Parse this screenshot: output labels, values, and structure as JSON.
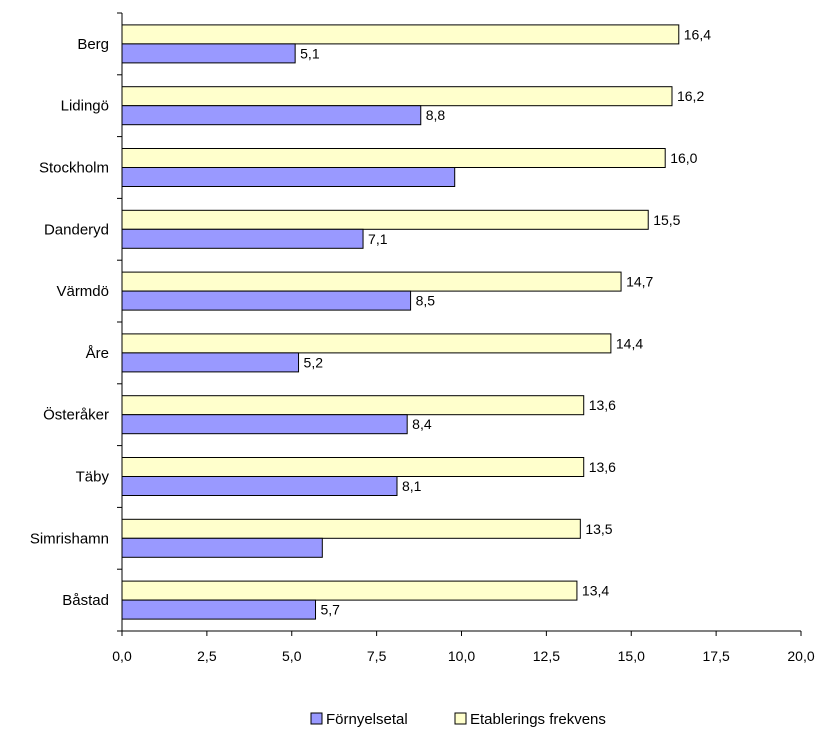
{
  "chart_data": {
    "type": "bar",
    "orientation": "horizontal",
    "categories": [
      "Berg",
      "Lidingö",
      "Stockholm",
      "Danderyd",
      "Värmdö",
      "Åre",
      "Österåker",
      "Täby",
      "Simrishamn",
      "Båstad"
    ],
    "series": [
      {
        "name": "Förnyelsetal",
        "color": "#9999ff",
        "values": [
          5.1,
          8.8,
          9.8,
          7.1,
          8.5,
          5.2,
          8.4,
          8.1,
          5.9,
          5.7
        ],
        "labels": [
          "5,1",
          "8,8",
          "",
          "7,1",
          "8,5",
          "5,2",
          "8,4",
          "8,1",
          "",
          "5,7"
        ]
      },
      {
        "name": "Etablerings frekvens",
        "color": "#ffffcc",
        "values": [
          16.4,
          16.2,
          16.0,
          15.5,
          14.7,
          14.4,
          13.6,
          13.6,
          13.5,
          13.4
        ],
        "labels": [
          "16,4",
          "16,2",
          "16,0",
          "15,5",
          "14,7",
          "14,4",
          "13,6",
          "13,6",
          "13,5",
          "13,4"
        ]
      }
    ],
    "xlim": [
      0,
      20
    ],
    "xticks": [
      "0,0",
      "2,5",
      "5,0",
      "7,5",
      "10,0",
      "12,5",
      "15,0",
      "17,5",
      "20,0"
    ],
    "grid": false,
    "legend_position": "bottom"
  }
}
